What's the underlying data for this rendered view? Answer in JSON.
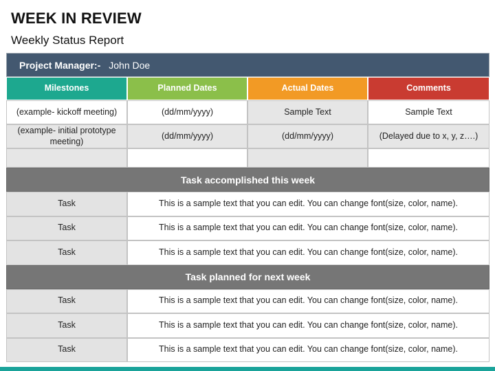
{
  "title": "WEEK IN REVIEW",
  "subtitle": "Weekly Status Report",
  "project_manager": {
    "label": "Project Manager:-",
    "name": "John Doe"
  },
  "columns": [
    {
      "label": "Milestones",
      "color": "#1da88f"
    },
    {
      "label": "Planned Dates",
      "color": "#8bbf4a"
    },
    {
      "label": "Actual Dates",
      "color": "#f29a25"
    },
    {
      "label": "Comments",
      "color": "#c93b31"
    }
  ],
  "milestones": [
    [
      "(example- kickoff meeting)",
      "(dd/mm/yyyy)",
      "Sample Text",
      "Sample Text"
    ],
    [
      "(example- initial prototype meeting)",
      "(dd/mm/yyyy)",
      "(dd/mm/yyyy)",
      "(Delayed due to x, y, z….)"
    ],
    [
      "",
      "",
      "",
      ""
    ]
  ],
  "accomplished": {
    "heading": "Task accomplished this week",
    "rows": [
      {
        "task": "Task",
        "text": "This is a sample text that you can edit. You can change font(size, color, name)."
      },
      {
        "task": "Task",
        "text": "This is a sample text that you can edit. You can change font(size, color, name)."
      },
      {
        "task": "Task",
        "text": "This is a sample text that you can edit. You can change font(size, color, name)."
      }
    ]
  },
  "planned": {
    "heading": "Task planned for next week",
    "rows": [
      {
        "task": "Task",
        "text": "This is a sample text that you can edit. You can change font(size, color, name)."
      },
      {
        "task": "Task",
        "text": "This is a sample text that you can edit. You can change font(size, color, name)."
      },
      {
        "task": "Task",
        "text": "This is a sample text that you can edit. You can change font(size, color, name)."
      }
    ]
  },
  "accent_color": "#1aa39a"
}
